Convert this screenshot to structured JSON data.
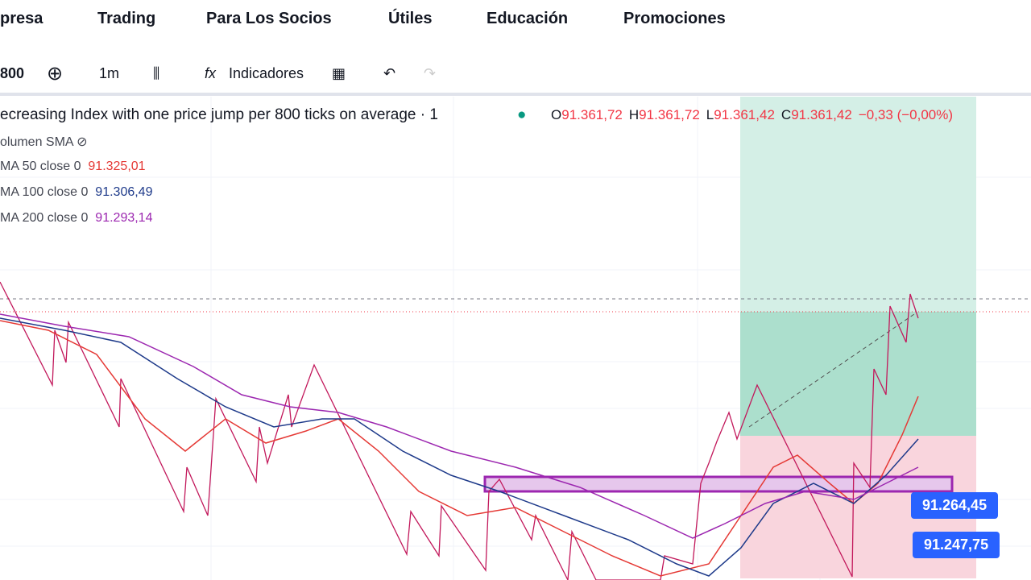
{
  "nav": [
    "presa",
    "Trading",
    "Para Los Socios",
    "Útiles",
    "Educación",
    "Promociones"
  ],
  "toolbar": {
    "symbol": "800",
    "interval": "1m",
    "indicators": "Indicadores"
  },
  "legend": {
    "title": "ecreasing Index with one price jump per 800 ticks on average · 1",
    "ohlc": [
      {
        "key": "O",
        "value": "91.361,72"
      },
      {
        "key": "H",
        "value": "91.361,72"
      },
      {
        "key": "L",
        "value": "91.361,42"
      },
      {
        "key": "C",
        "value": "91.361,42"
      }
    ],
    "change": "−0,33 (−0,00%)",
    "volume": "olumen SMA",
    "studies": [
      {
        "name": "MA 50 close 0",
        "value": "91.325,01"
      },
      {
        "name": "MA 100 close 0",
        "value": "91.306,49"
      },
      {
        "name": "MA 200 close 0",
        "value": "91.293,14"
      }
    ]
  },
  "price_labels": [
    "91.264,45",
    "91.247,75"
  ]
}
